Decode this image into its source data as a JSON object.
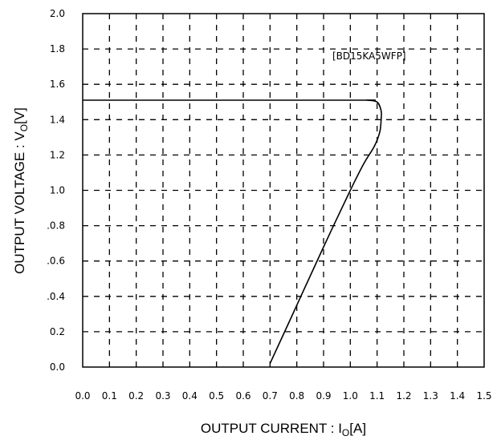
{
  "chart_data": {
    "type": "line",
    "xlabel_main": "OUTPUT CURRENT : I",
    "xlabel_sub": "O",
    "xlabel_unit": "[A]",
    "ylabel_main": "OUTPUT VOLTAGE : V",
    "ylabel_sub": "O",
    "ylabel_unit": "[V]",
    "annotation": "[BD15KA5WFP]",
    "xlim": [
      0,
      1.5
    ],
    "ylim": [
      0,
      2.0
    ],
    "x_ticks": [
      0.0,
      0.1,
      0.2,
      0.3,
      0.4,
      0.5,
      0.6,
      0.7,
      0.8,
      0.9,
      1.0,
      1.1,
      1.2,
      1.3,
      1.4,
      1.5
    ],
    "x_tick_labels": [
      "0.0",
      "0.1",
      "0.2",
      "0.3",
      "0.4",
      "0.5",
      "0.6",
      "0.7",
      "0.8",
      "0.9",
      "1.0",
      "1.1",
      "1.2",
      "1.3",
      "1.4",
      "1.5"
    ],
    "y_ticks": [
      0.0,
      0.2,
      0.4,
      0.6,
      0.8,
      1.0,
      1.2,
      1.4,
      1.6,
      1.8,
      2.0
    ],
    "y_tick_labels": [
      "0.0",
      "0.2",
      ".0.4",
      ".0.6",
      ".0.8",
      "1.0",
      "1.2",
      "1.4",
      "1.6",
      "1.8",
      "2.0"
    ],
    "grid": true,
    "grid_style": "dashed",
    "series": [
      {
        "x": [
          0.0,
          1.0,
          1.06,
          1.1,
          1.115,
          1.115,
          1.11,
          1.09,
          1.05,
          1.0,
          0.9,
          0.8,
          0.7
        ],
        "y": [
          1.51,
          1.51,
          1.51,
          1.5,
          1.45,
          1.4,
          1.33,
          1.25,
          1.15,
          1.0,
          0.68,
          0.35,
          0.02
        ]
      }
    ]
  }
}
